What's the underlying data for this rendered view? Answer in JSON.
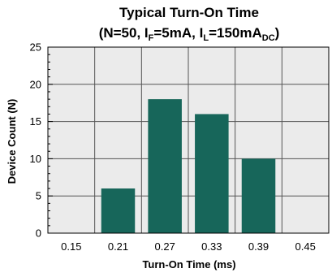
{
  "chart_data": {
    "type": "bar",
    "title_line1": "Typical Turn-On Time",
    "title_line2": {
      "part1": "(N=50, I",
      "sub1": "F",
      "part2": "=5mA, I",
      "sub2": "L",
      "part3": "=150mA",
      "sub3": "DC",
      "part4": ")"
    },
    "xlabel": "Turn-On Time (ms)",
    "ylabel": "Device Count (N)",
    "categories": [
      "0.15",
      "0.21",
      "0.27",
      "0.33",
      "0.39",
      "0.45"
    ],
    "values": [
      0,
      6,
      18,
      16,
      10,
      0
    ],
    "ylim": [
      0,
      25
    ],
    "yticks": [
      0,
      5,
      10,
      15,
      20,
      25
    ],
    "grid": true,
    "colors": {
      "bar": "#17665a",
      "plot_bg": "#ebebeb",
      "grid": "#555555"
    }
  }
}
